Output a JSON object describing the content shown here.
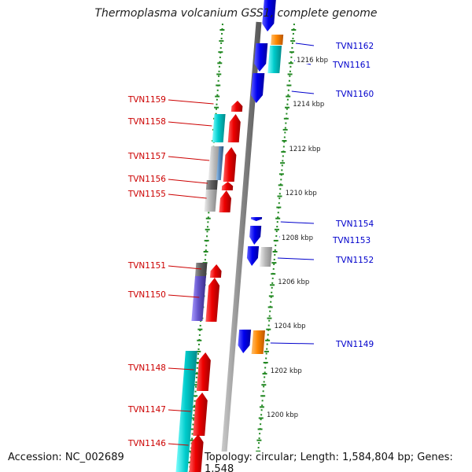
{
  "title": "Thermoplasma volcanium GSS1, complete genome",
  "footer": {
    "accession": "Accession: NC_002689",
    "summary": "Topology: circular; Length: 1,584,804 bp; Genes: 1,548"
  },
  "colors": {
    "forward_strand_label": "#cc0000",
    "reverse_strand_label": "#0000cc",
    "ruler_dots": "#228822",
    "backbone": "#8a8a8a",
    "red": "#ee0000",
    "blue": "#0000ee",
    "cyan": "#00cccc",
    "orange": "#ff8800",
    "grey": "#b8b8b8",
    "dark_grey": "#606060",
    "purple": "#6655cc",
    "steel": "#5588bb"
  },
  "kbp_marks": [
    {
      "label": "1216 kbp"
    },
    {
      "label": "1214 kbp"
    },
    {
      "label": "1212 kbp"
    },
    {
      "label": "1210 kbp"
    },
    {
      "label": "1208 kbp"
    },
    {
      "label": "1206 kbp"
    },
    {
      "label": "1204 kbp"
    },
    {
      "label": "1202 kbp"
    },
    {
      "label": "1200 kbp"
    }
  ],
  "genes_left": [
    {
      "label": "TVN1159"
    },
    {
      "label": "TVN1158"
    },
    {
      "label": "TVN1157"
    },
    {
      "label": "TVN1156"
    },
    {
      "label": "TVN1155"
    },
    {
      "label": "TVN1151"
    },
    {
      "label": "TVN1150"
    },
    {
      "label": "TVN1148"
    },
    {
      "label": "TVN1147"
    },
    {
      "label": "TVN1146"
    }
  ],
  "genes_right": [
    {
      "label": "TVN1162"
    },
    {
      "label": "TVN1161"
    },
    {
      "label": "TVN1160"
    },
    {
      "label": "TVN1154"
    },
    {
      "label": "TVN1153"
    },
    {
      "label": "TVN1152"
    },
    {
      "label": "TVN1149"
    }
  ]
}
